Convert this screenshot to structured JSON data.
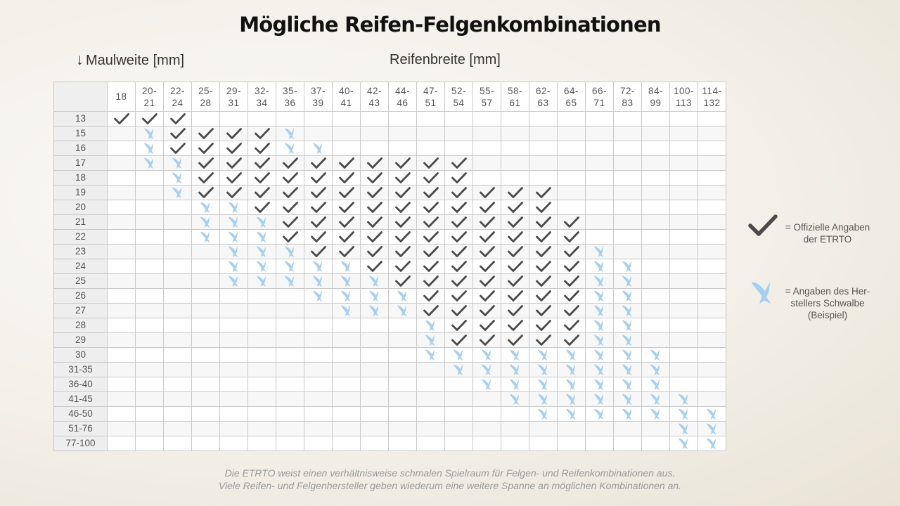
{
  "title": "Mögliche Reifen-Felgenkombinationen",
  "row_axis_label": "Maulweite [mm]",
  "col_axis_label": "Reifenbreite [mm]",
  "columns": [
    "18",
    "20-\n21",
    "22-\n24",
    "25-\n28",
    "29-\n31",
    "32-\n34",
    "35-\n36",
    "37-\n39",
    "40-\n41",
    "42-\n43",
    "44-\n46",
    "47-\n51",
    "52-\n54",
    "55-\n57",
    "58-\n61",
    "62-\n63",
    "64-\n65",
    "66-\n71",
    "72-\n83",
    "84-\n99",
    "100-\n113",
    "114-\n132"
  ],
  "rows": [
    {
      "label": "13",
      "etrto": [
        0,
        2
      ],
      "schwalbe": []
    },
    {
      "label": "15",
      "etrto": [
        2,
        5
      ],
      "schwalbe": [
        [
          1,
          1
        ],
        [
          6,
          6
        ]
      ]
    },
    {
      "label": "16",
      "etrto": [
        2,
        5
      ],
      "schwalbe": [
        [
          1,
          1
        ],
        [
          6,
          7
        ]
      ]
    },
    {
      "label": "17",
      "etrto": [
        3,
        12
      ],
      "schwalbe": [
        [
          1,
          2
        ]
      ]
    },
    {
      "label": "18",
      "etrto": [
        3,
        12
      ],
      "schwalbe": [
        [
          2,
          2
        ]
      ]
    },
    {
      "label": "19",
      "etrto": [
        3,
        15
      ],
      "schwalbe": [
        [
          2,
          2
        ]
      ]
    },
    {
      "label": "20",
      "etrto": [
        5,
        15
      ],
      "schwalbe": [
        [
          3,
          4
        ]
      ]
    },
    {
      "label": "21",
      "etrto": [
        6,
        16
      ],
      "schwalbe": [
        [
          3,
          5
        ]
      ]
    },
    {
      "label": "22",
      "etrto": [
        6,
        16
      ],
      "schwalbe": [
        [
          3,
          5
        ]
      ]
    },
    {
      "label": "23",
      "etrto": [
        7,
        16
      ],
      "schwalbe": [
        [
          4,
          6
        ],
        [
          17,
          17
        ]
      ]
    },
    {
      "label": "24",
      "etrto": [
        9,
        16
      ],
      "schwalbe": [
        [
          4,
          8
        ],
        [
          17,
          18
        ]
      ]
    },
    {
      "label": "25",
      "etrto": [
        10,
        16
      ],
      "schwalbe": [
        [
          4,
          9
        ],
        [
          17,
          18
        ]
      ]
    },
    {
      "label": "26",
      "etrto": [
        11,
        16
      ],
      "schwalbe": [
        [
          7,
          10
        ],
        [
          17,
          18
        ]
      ]
    },
    {
      "label": "27",
      "etrto": [
        11,
        16
      ],
      "schwalbe": [
        [
          8,
          10
        ],
        [
          17,
          18
        ]
      ]
    },
    {
      "label": "28",
      "etrto": [
        12,
        16
      ],
      "schwalbe": [
        [
          11,
          11
        ],
        [
          17,
          18
        ]
      ]
    },
    {
      "label": "29",
      "etrto": [
        12,
        16
      ],
      "schwalbe": [
        [
          11,
          11
        ],
        [
          17,
          18
        ]
      ]
    },
    {
      "label": "30",
      "etrto": [],
      "schwalbe": [
        [
          11,
          19
        ]
      ]
    },
    {
      "label": "31-35",
      "etrto": [],
      "schwalbe": [
        [
          12,
          19
        ]
      ]
    },
    {
      "label": "36-40",
      "etrto": [],
      "schwalbe": [
        [
          13,
          19
        ]
      ]
    },
    {
      "label": "41-45",
      "etrto": [],
      "schwalbe": [
        [
          14,
          20
        ]
      ]
    },
    {
      "label": "46-50",
      "etrto": [],
      "schwalbe": [
        [
          15,
          21
        ]
      ]
    },
    {
      "label": "51-76",
      "etrto": [],
      "schwalbe": [
        [
          20,
          21
        ]
      ]
    },
    {
      "label": "77-100",
      "etrto": [],
      "schwalbe": [
        [
          20,
          21
        ]
      ]
    }
  ],
  "legend": {
    "etrto": "= Offizielle Angaben\nder ETRTO",
    "schwalbe": "= Angaben des Her-\nstellers Schwalbe\n(Beispiel)"
  },
  "colors": {
    "check": "#4a4a4a",
    "schwalbe": "#a9cfee"
  },
  "icons": {
    "etrto": "checkmark-icon",
    "schwalbe": "swallow-icon"
  },
  "footnote": [
    "Die ETRTO weist einen verhältnisweise schmalen Spielraum für Felgen- und Reifenkombinationen aus.",
    "Viele Reifen- und Felgenhersteller geben wiederum eine weitere Spanne an möglichen Kombinationen an."
  ]
}
